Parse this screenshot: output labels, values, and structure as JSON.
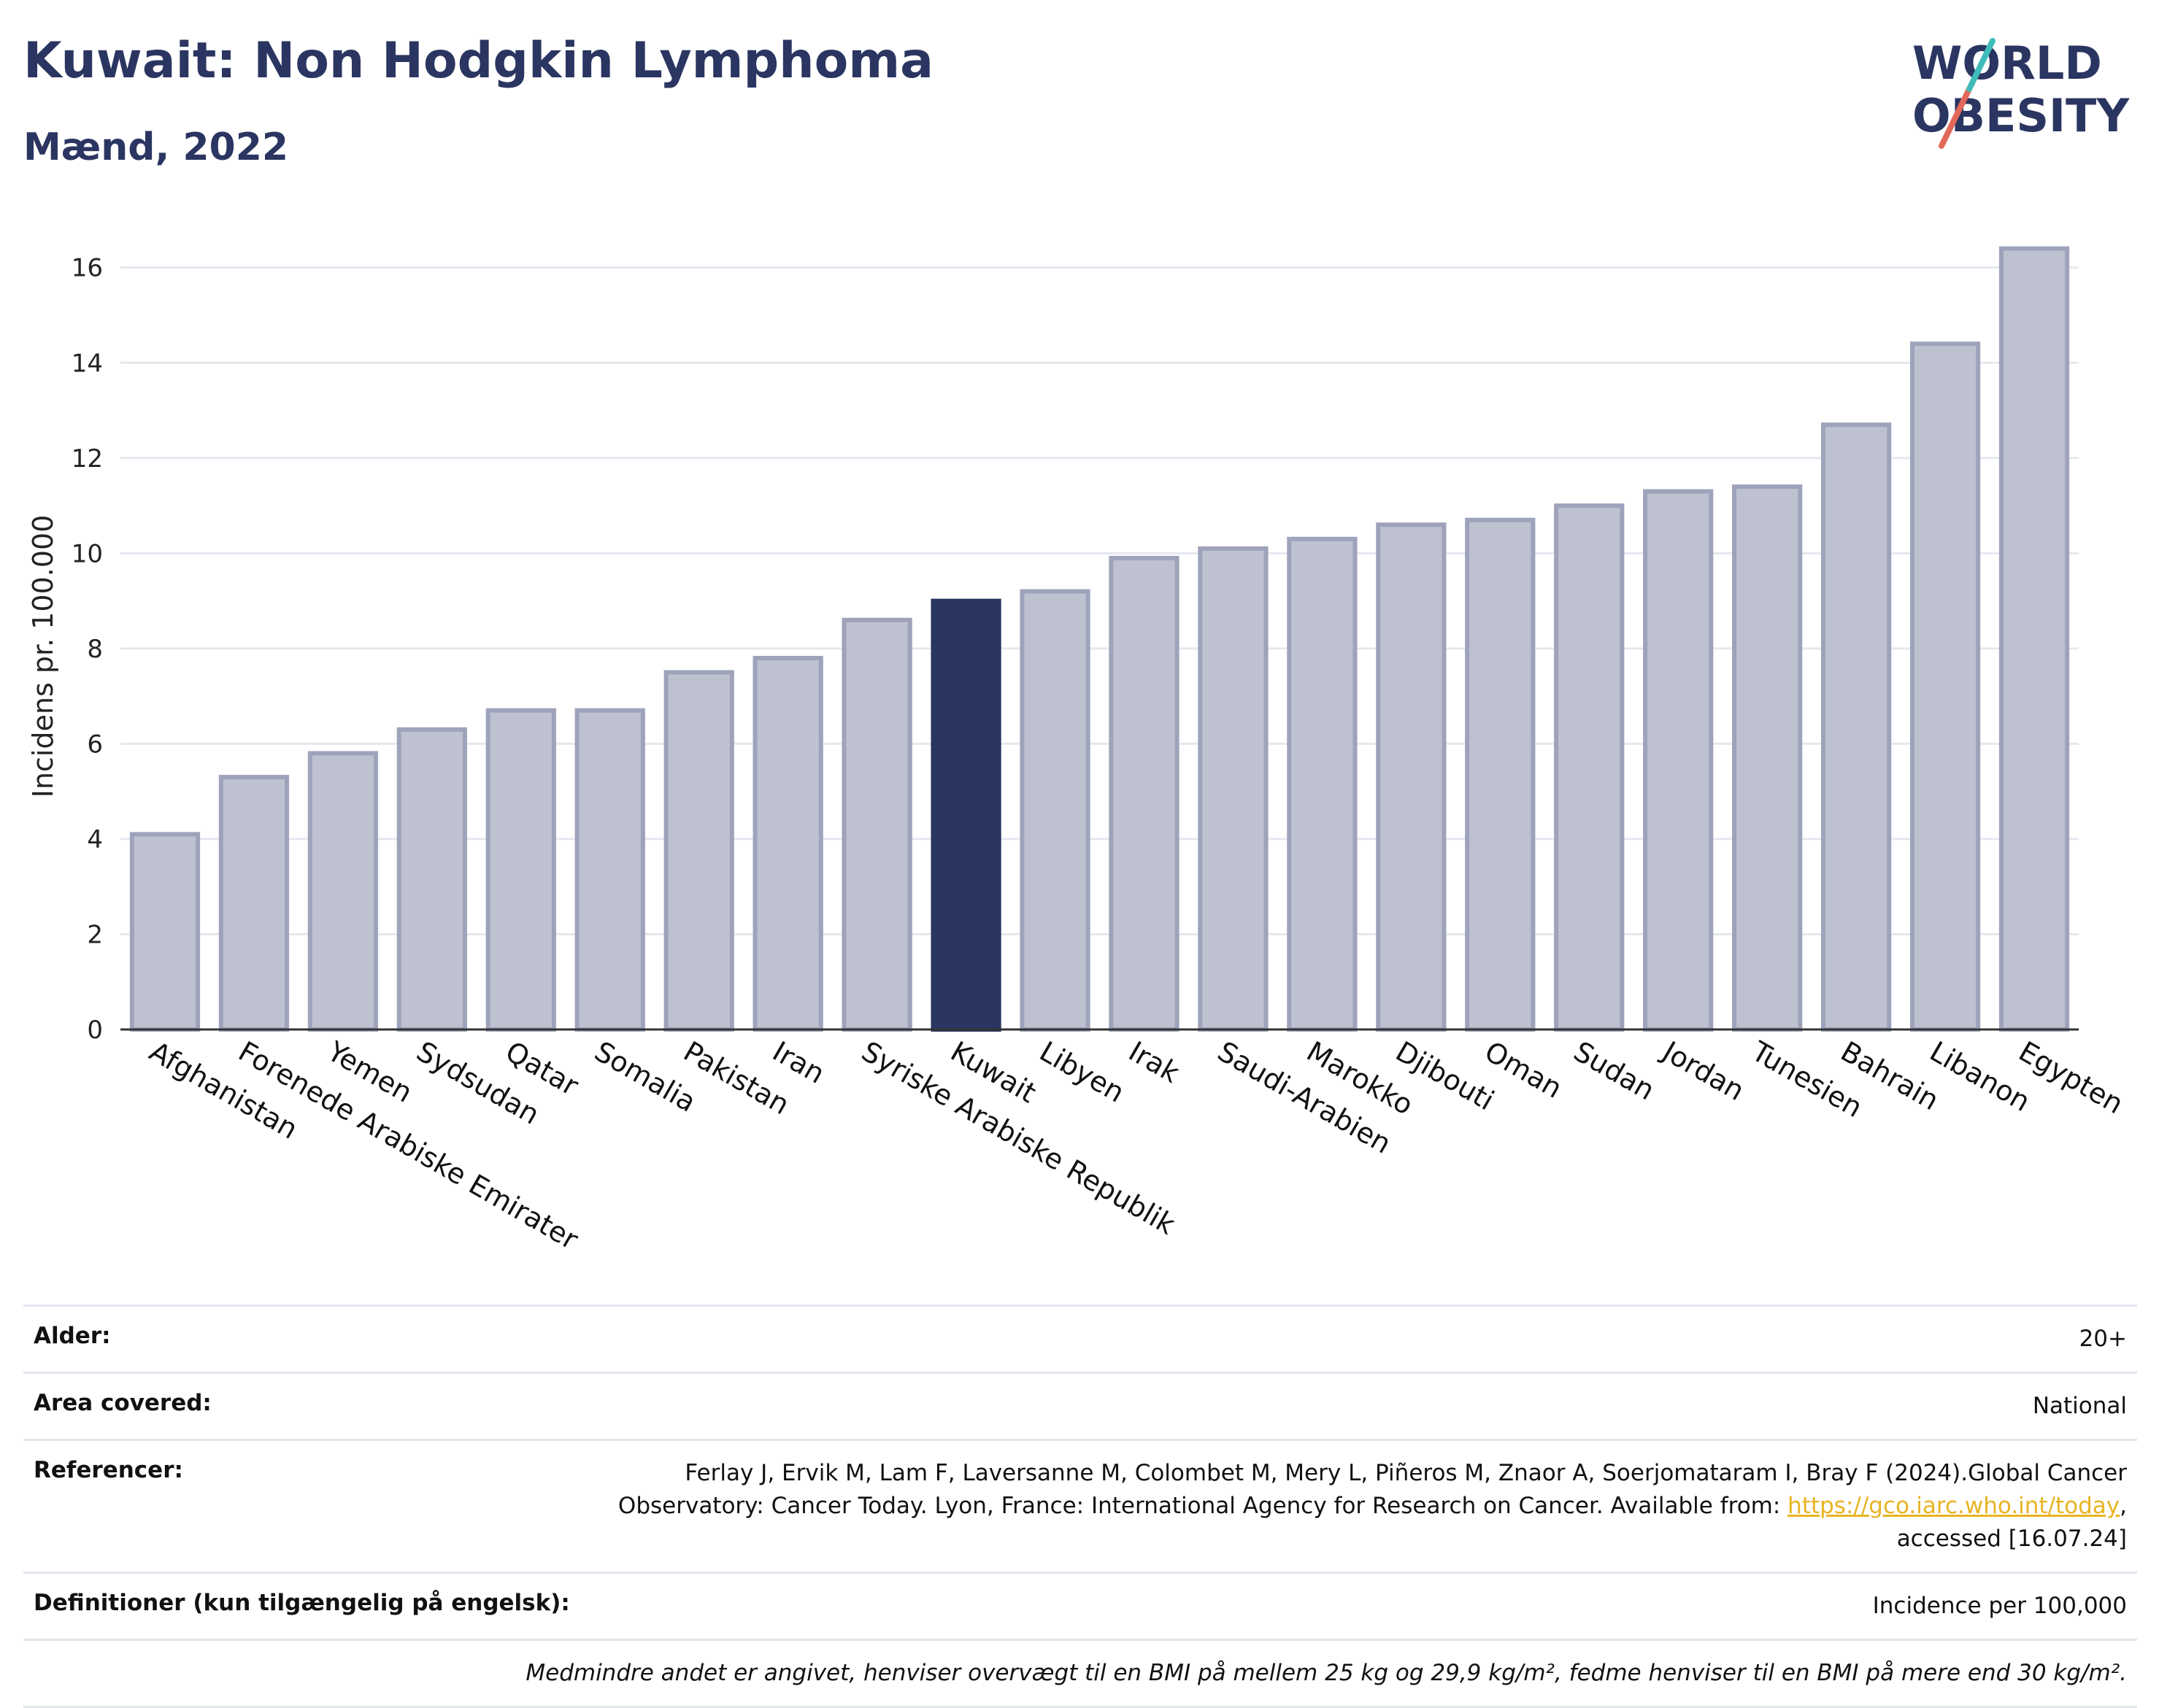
{
  "header": {
    "title": "Kuwait: Non Hodgkin Lymphoma",
    "subtitle": "Mænd, 2022"
  },
  "logo": {
    "line1": "WORLD",
    "line2": "OBESITY"
  },
  "colors": {
    "highlight": "#2b3561",
    "bar": "#bec1cf",
    "bar_border": "#9ea3bb",
    "grid": "#e6e8ef"
  },
  "chart_data": {
    "type": "bar",
    "title": "Kuwait: Non Hodgkin Lymphoma",
    "subtitle": "Mænd, 2022",
    "xlabel": "",
    "ylabel": "Incidens pr. 100.000",
    "ylim": [
      0,
      16.9
    ],
    "yticks": [
      0,
      2,
      4,
      6,
      8,
      10,
      12,
      14,
      16
    ],
    "grid": true,
    "highlight": "Kuwait",
    "categories": [
      "Afghanistan",
      "Forenede Arabiske Emirater",
      "Yemen",
      "Sydsudan",
      "Qatar",
      "Somalia",
      "Pakistan",
      "Iran",
      "Syriske Arabiske Republik",
      "Kuwait",
      "Libyen",
      "Irak",
      "Saudi-Arabien",
      "Marokko",
      "Djibouti",
      "Oman",
      "Sudan",
      "Jordan",
      "Tunesien",
      "Bahrain",
      "Libanon",
      "Egypten"
    ],
    "values": [
      4.1,
      5.3,
      5.8,
      6.3,
      6.7,
      6.7,
      7.5,
      7.8,
      8.6,
      9.0,
      9.2,
      9.9,
      10.1,
      10.3,
      10.6,
      10.7,
      11.0,
      11.3,
      11.4,
      12.7,
      14.4,
      16.4
    ]
  },
  "info": {
    "age_label": "Alder:",
    "age_value": "20+",
    "area_label": "Area covered:",
    "area_value": "National",
    "ref_label": "Referencer:",
    "ref_line1": "Ferlay J, Ervik M, Lam F, Laversanne M, Colombet M, Mery L, Piñeros M, Znaor A, Soerjomataram I, Bray F (2024).Global Cancer",
    "ref_line2_prefix": "Observatory: Cancer Today. Lyon, France: International Agency for Research on Cancer. Available from: ",
    "ref_link": "https://gco.iarc.who.int/today",
    "ref_line2_suffix": ",",
    "ref_line3": "accessed [16.07.24]",
    "def_label": "Definitioner (kun tilgængelig på engelsk):",
    "def_value": "Incidence per 100,000",
    "note": "Medmindre andet er angivet, henviser overvægt til en BMI på mellem 25 kg og 29,9 kg/m², fedme henviser til en BMI på mere end 30 kg/m²."
  }
}
